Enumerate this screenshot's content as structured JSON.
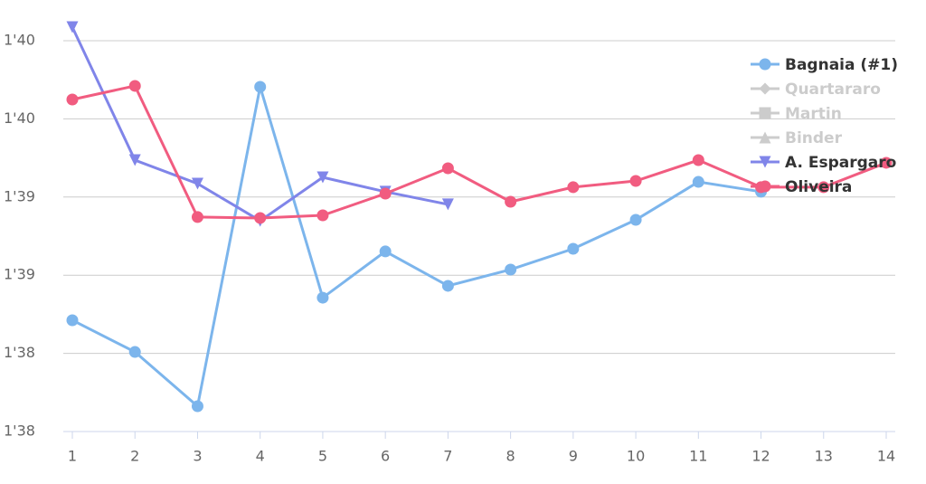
{
  "chart_data": {
    "type": "line",
    "x": [
      1,
      2,
      3,
      4,
      5,
      6,
      7,
      8,
      9,
      10,
      11,
      12,
      13,
      14
    ],
    "xlim": [
      1,
      14
    ],
    "xticks": [
      1,
      2,
      3,
      4,
      5,
      6,
      7,
      8,
      9,
      10,
      11,
      12,
      13,
      14
    ],
    "ylim": [
      98,
      100.5
    ],
    "yticks": [
      {
        "value": 98,
        "label": "1'38"
      },
      {
        "value": 98.5,
        "label": "1'38"
      },
      {
        "value": 99,
        "label": "1'39"
      },
      {
        "value": 99.5,
        "label": "1'39"
      },
      {
        "value": 100,
        "label": "1'40"
      },
      {
        "value": 100.5,
        "label": "1'40"
      }
    ],
    "grid": true,
    "legend": "top-right",
    "series": [
      {
        "name": "Bagnaia (#1)",
        "color": "#7cb5ec",
        "marker": "circle",
        "visible": true,
        "values": [
          98.712,
          98.509,
          98.162,
          100.205,
          98.856,
          99.152,
          98.932,
          99.036,
          99.169,
          99.354,
          99.597,
          99.534,
          null,
          null
        ]
      },
      {
        "name": "Quartararo",
        "color": "#434348",
        "marker": "diamond",
        "visible": false,
        "values": [
          null,
          null,
          null,
          null,
          null,
          null,
          null,
          null,
          null,
          null,
          null,
          null,
          null,
          null
        ]
      },
      {
        "name": "Martin",
        "color": "#90ed7d",
        "marker": "square",
        "visible": false,
        "values": [
          null,
          null,
          null,
          null,
          null,
          null,
          null,
          null,
          null,
          null,
          null,
          null,
          null,
          null
        ]
      },
      {
        "name": "Binder",
        "color": "#f7a35c",
        "marker": "triangle",
        "visible": false,
        "values": [
          null,
          null,
          null,
          null,
          null,
          null,
          null,
          null,
          null,
          null,
          null,
          null,
          null,
          null
        ]
      },
      {
        "name": "A. Espargaro",
        "color": "#8085e9",
        "marker": "triangle-down",
        "visible": true,
        "values": [
          100.587,
          99.736,
          99.586,
          99.348,
          99.626,
          99.534,
          99.453,
          null,
          null,
          null,
          null,
          null,
          null,
          null
        ]
      },
      {
        "name": "Oliveira",
        "color": "#f15c80",
        "marker": "circle",
        "visible": true,
        "values": [
          100.124,
          100.211,
          99.372,
          99.366,
          99.383,
          99.522,
          99.684,
          99.47,
          99.563,
          99.603,
          99.736,
          99.563,
          99.563,
          99.719
        ]
      }
    ]
  }
}
